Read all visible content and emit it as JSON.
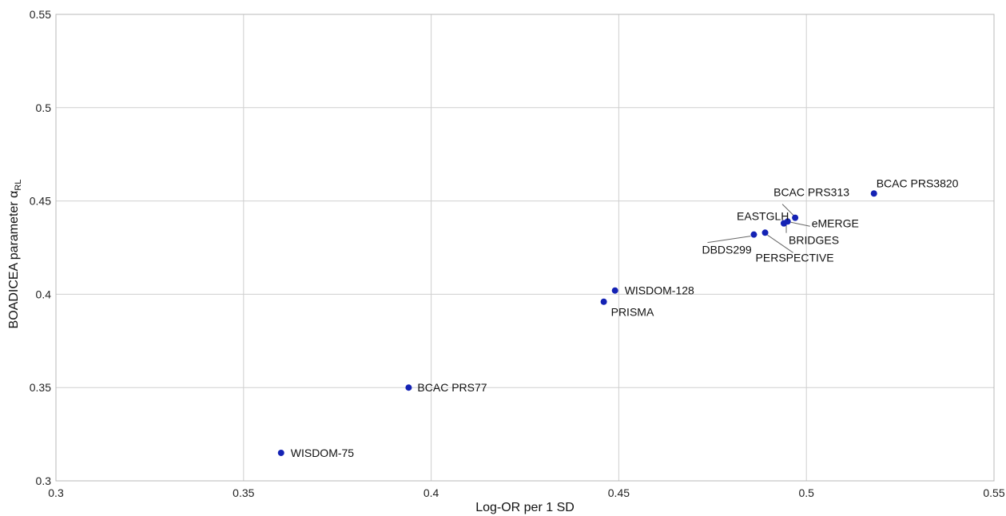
{
  "chart_data": {
    "type": "scatter",
    "xlabel": "Log-OR per 1 SD",
    "ylabel": {
      "main": "BOADICEA parameter α",
      "sub": "RL"
    },
    "xlim": [
      0.3,
      0.55
    ],
    "ylim": [
      0.3,
      0.55
    ],
    "xticks": [
      "0.3",
      "0.35",
      "0.4",
      "0.45",
      "0.5",
      "0.55"
    ],
    "yticks": [
      "0.3",
      "0.35",
      "0.4",
      "0.45",
      "0.5",
      "0.55"
    ],
    "xtick_values": [
      0.3,
      0.35,
      0.4,
      0.45,
      0.5,
      0.55
    ],
    "ytick_values": [
      0.3,
      0.35,
      0.4,
      0.45,
      0.5,
      0.55
    ],
    "grid": true,
    "marker_color": "#1422b4",
    "points": [
      {
        "label": "WISDOM-75",
        "x": 0.36,
        "y": 0.315
      },
      {
        "label": "BCAC PRS77",
        "x": 0.394,
        "y": 0.35
      },
      {
        "label": "PRISMA",
        "x": 0.446,
        "y": 0.396
      },
      {
        "label": "WISDOM-128",
        "x": 0.449,
        "y": 0.402
      },
      {
        "label": "DBDS299",
        "x": 0.486,
        "y": 0.432
      },
      {
        "label": "PERSPECTIVE",
        "x": 0.489,
        "y": 0.433
      },
      {
        "label": "EASTGLH",
        "x": 0.494,
        "y": 0.438
      },
      {
        "label": "BRIDGES",
        "x": 0.494,
        "y": 0.438
      },
      {
        "label": "eMERGE",
        "x": 0.495,
        "y": 0.439
      },
      {
        "label": "BCAC PRS313",
        "x": 0.497,
        "y": 0.441
      },
      {
        "label": "BCAC PRS3820",
        "x": 0.518,
        "y": 0.454
      }
    ]
  }
}
